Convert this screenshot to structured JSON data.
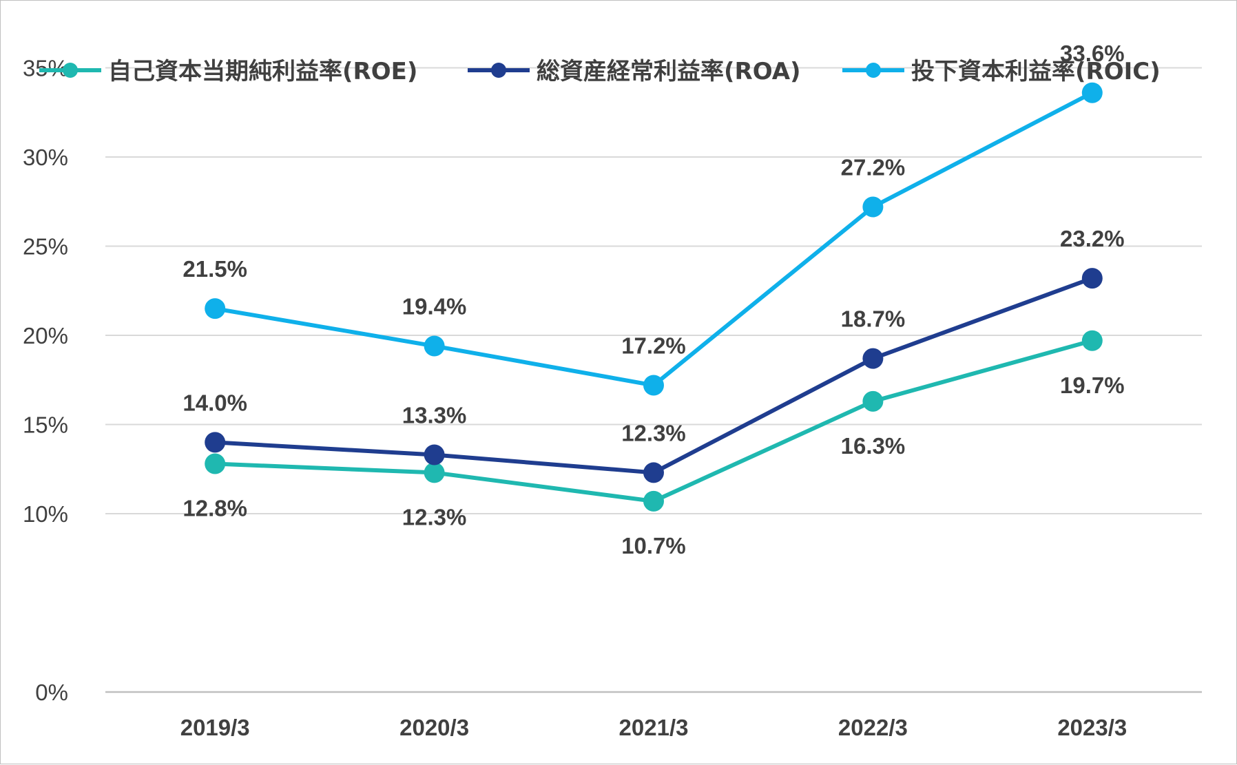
{
  "chart_data": {
    "type": "line",
    "categories": [
      "2019/3",
      "2020/3",
      "2021/3",
      "2022/3",
      "2023/3"
    ],
    "y_ticks": [
      "0%",
      "10%",
      "15%",
      "20%",
      "25%",
      "30%",
      "35%"
    ],
    "ylim": [
      0,
      35
    ],
    "grid": true,
    "legend_position": "top",
    "series": [
      {
        "name": "自己資本当期純利益率(ROE)",
        "color": "#1fb8b0",
        "values": [
          12.8,
          12.3,
          10.7,
          16.3,
          19.7
        ],
        "labels": [
          "12.8%",
          "12.3%",
          "10.7%",
          "16.3%",
          "19.7%"
        ],
        "label_side": [
          "below",
          "below",
          "below",
          "below",
          "below"
        ]
      },
      {
        "name": "総資産経常利益率(ROA)",
        "color": "#1f3d8f",
        "values": [
          14.0,
          13.3,
          12.3,
          18.7,
          23.2
        ],
        "labels": [
          "14.0%",
          "13.3%",
          "12.3%",
          "18.7%",
          "23.2%"
        ],
        "label_side": [
          "above",
          "above",
          "above",
          "above",
          "above"
        ]
      },
      {
        "name": "投下資本利益率(ROIC)",
        "color": "#0fb0ea",
        "values": [
          21.5,
          19.4,
          17.2,
          27.2,
          33.6
        ],
        "labels": [
          "21.5%",
          "19.4%",
          "17.2%",
          "27.2%",
          "33.6%"
        ],
        "label_side": [
          "above",
          "above",
          "above",
          "above",
          "above"
        ]
      }
    ]
  }
}
